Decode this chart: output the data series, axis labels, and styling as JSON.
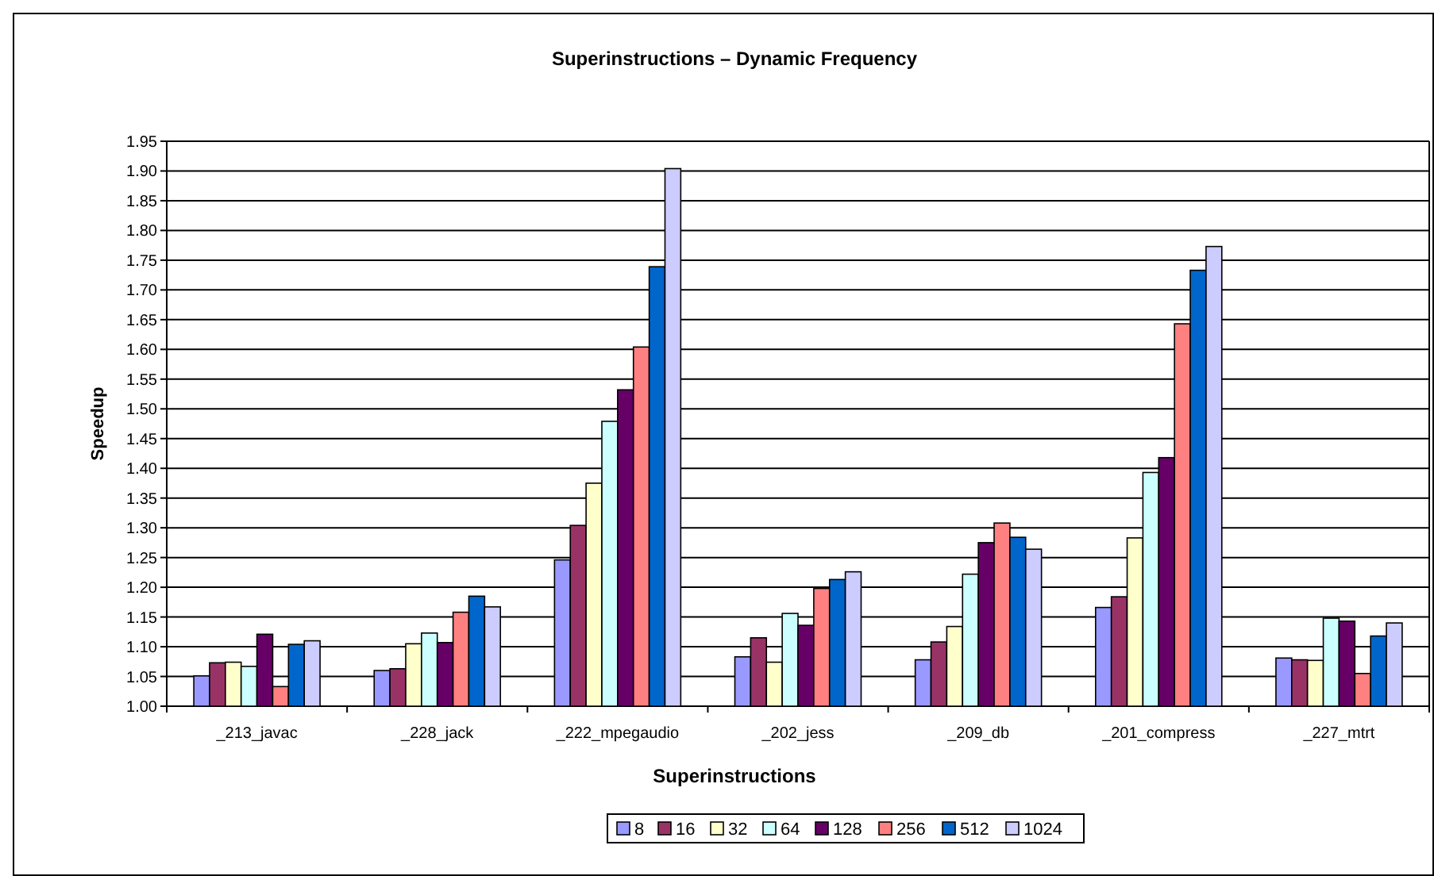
{
  "chart_data": {
    "type": "bar",
    "title": "Superinstructions – Dynamic Frequency",
    "xlabel": "Superinstructions",
    "ylabel": "Speedup",
    "categories": [
      "_213_javac",
      "_228_jack",
      "_222_mpegaudio",
      "_202_jess",
      "_209_db",
      "_201_compress",
      "_227_mtrt"
    ],
    "series": [
      {
        "name": "8",
        "color": "#9999ff",
        "values": [
          1.051,
          1.06,
          1.246,
          1.083,
          1.078,
          1.166,
          1.081
        ]
      },
      {
        "name": "16",
        "color": "#993366",
        "values": [
          1.073,
          1.063,
          1.304,
          1.115,
          1.108,
          1.184,
          1.078
        ]
      },
      {
        "name": "32",
        "color": "#ffffcc",
        "values": [
          1.074,
          1.105,
          1.375,
          1.074,
          1.134,
          1.283,
          1.077
        ]
      },
      {
        "name": "64",
        "color": "#ccffff",
        "values": [
          1.067,
          1.123,
          1.479,
          1.156,
          1.222,
          1.393,
          1.148
        ]
      },
      {
        "name": "128",
        "color": "#660066",
        "values": [
          1.121,
          1.107,
          1.532,
          1.136,
          1.275,
          1.418,
          1.143
        ]
      },
      {
        "name": "256",
        "color": "#ff8080",
        "values": [
          1.033,
          1.158,
          1.604,
          1.198,
          1.308,
          1.643,
          1.055
        ]
      },
      {
        "name": "512",
        "color": "#0066cc",
        "values": [
          1.104,
          1.185,
          1.739,
          1.213,
          1.284,
          1.733,
          1.118
        ]
      },
      {
        "name": "1024",
        "color": "#ccccff",
        "values": [
          1.11,
          1.167,
          1.904,
          1.226,
          1.264,
          1.773,
          1.14
        ]
      }
    ],
    "ylim": [
      1,
      1.95
    ],
    "yticks": [
      {
        "value": 1,
        "label": "1.00"
      },
      {
        "value": 1.05,
        "label": "1.05"
      },
      {
        "value": 1.1,
        "label": "1.10"
      },
      {
        "value": 1.15,
        "label": "1.15"
      },
      {
        "value": 1.2,
        "label": "1.20"
      },
      {
        "value": 1.25,
        "label": "1.25"
      },
      {
        "value": 1.3,
        "label": "1.30"
      },
      {
        "value": 1.35,
        "label": "1.35"
      },
      {
        "value": 1.4,
        "label": "1.40"
      },
      {
        "value": 1.45,
        "label": "1.45"
      },
      {
        "value": 1.5,
        "label": "1.50"
      },
      {
        "value": 1.55,
        "label": "1.55"
      },
      {
        "value": 1.6,
        "label": "1.60"
      },
      {
        "value": 1.65,
        "label": "1.65"
      },
      {
        "value": 1.7,
        "label": "1.70"
      },
      {
        "value": 1.75,
        "label": "1.75"
      },
      {
        "value": 1.8,
        "label": "1.80"
      },
      {
        "value": 1.85,
        "label": "1.85"
      },
      {
        "value": 1.9,
        "label": "1.90"
      },
      {
        "value": 1.95,
        "label": "1.95"
      }
    ],
    "grid": "y",
    "legend": "bottom"
  }
}
